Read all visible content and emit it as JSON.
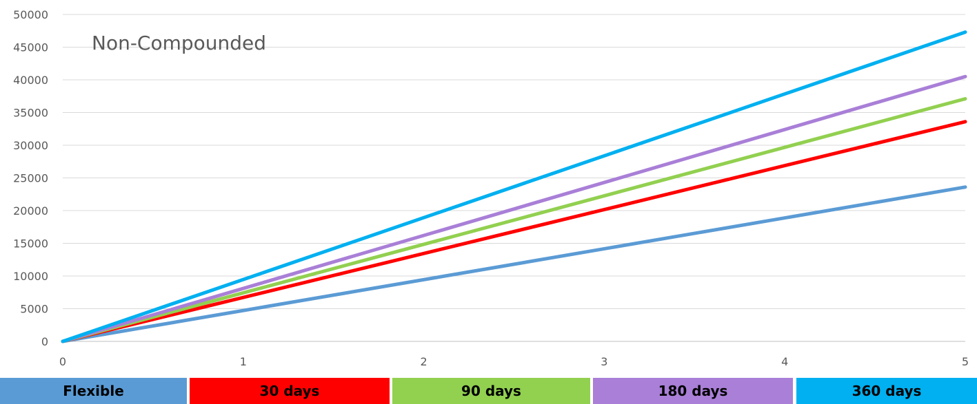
{
  "chart_data": {
    "type": "line",
    "title": "Non-Compounded",
    "xlabel": "",
    "ylabel": "",
    "xlim": [
      0,
      5
    ],
    "ylim": [
      0,
      50000
    ],
    "x_ticks": [
      "0",
      "1",
      "2",
      "3",
      "4",
      "5"
    ],
    "y_ticks": [
      "0",
      "5000",
      "10000",
      "15000",
      "20000",
      "25000",
      "30000",
      "35000",
      "40000",
      "45000",
      "50000"
    ],
    "grid": true,
    "legend_position": "bottom",
    "series": [
      {
        "name": "Flexible",
        "color": "#5b9bd5",
        "x": [
          0,
          5
        ],
        "y": [
          0,
          23600
        ]
      },
      {
        "name": "30 days",
        "color": "#ff0000",
        "x": [
          0,
          5
        ],
        "y": [
          0,
          33600
        ]
      },
      {
        "name": "90 days",
        "color": "#92d050",
        "x": [
          0,
          5
        ],
        "y": [
          0,
          37100
        ]
      },
      {
        "name": "180 days",
        "color": "#a97fd7",
        "x": [
          0,
          5
        ],
        "y": [
          0,
          40500
        ]
      },
      {
        "name": "360 days",
        "color": "#00b0f0",
        "x": [
          0,
          5
        ],
        "y": [
          0,
          47300
        ]
      }
    ]
  }
}
